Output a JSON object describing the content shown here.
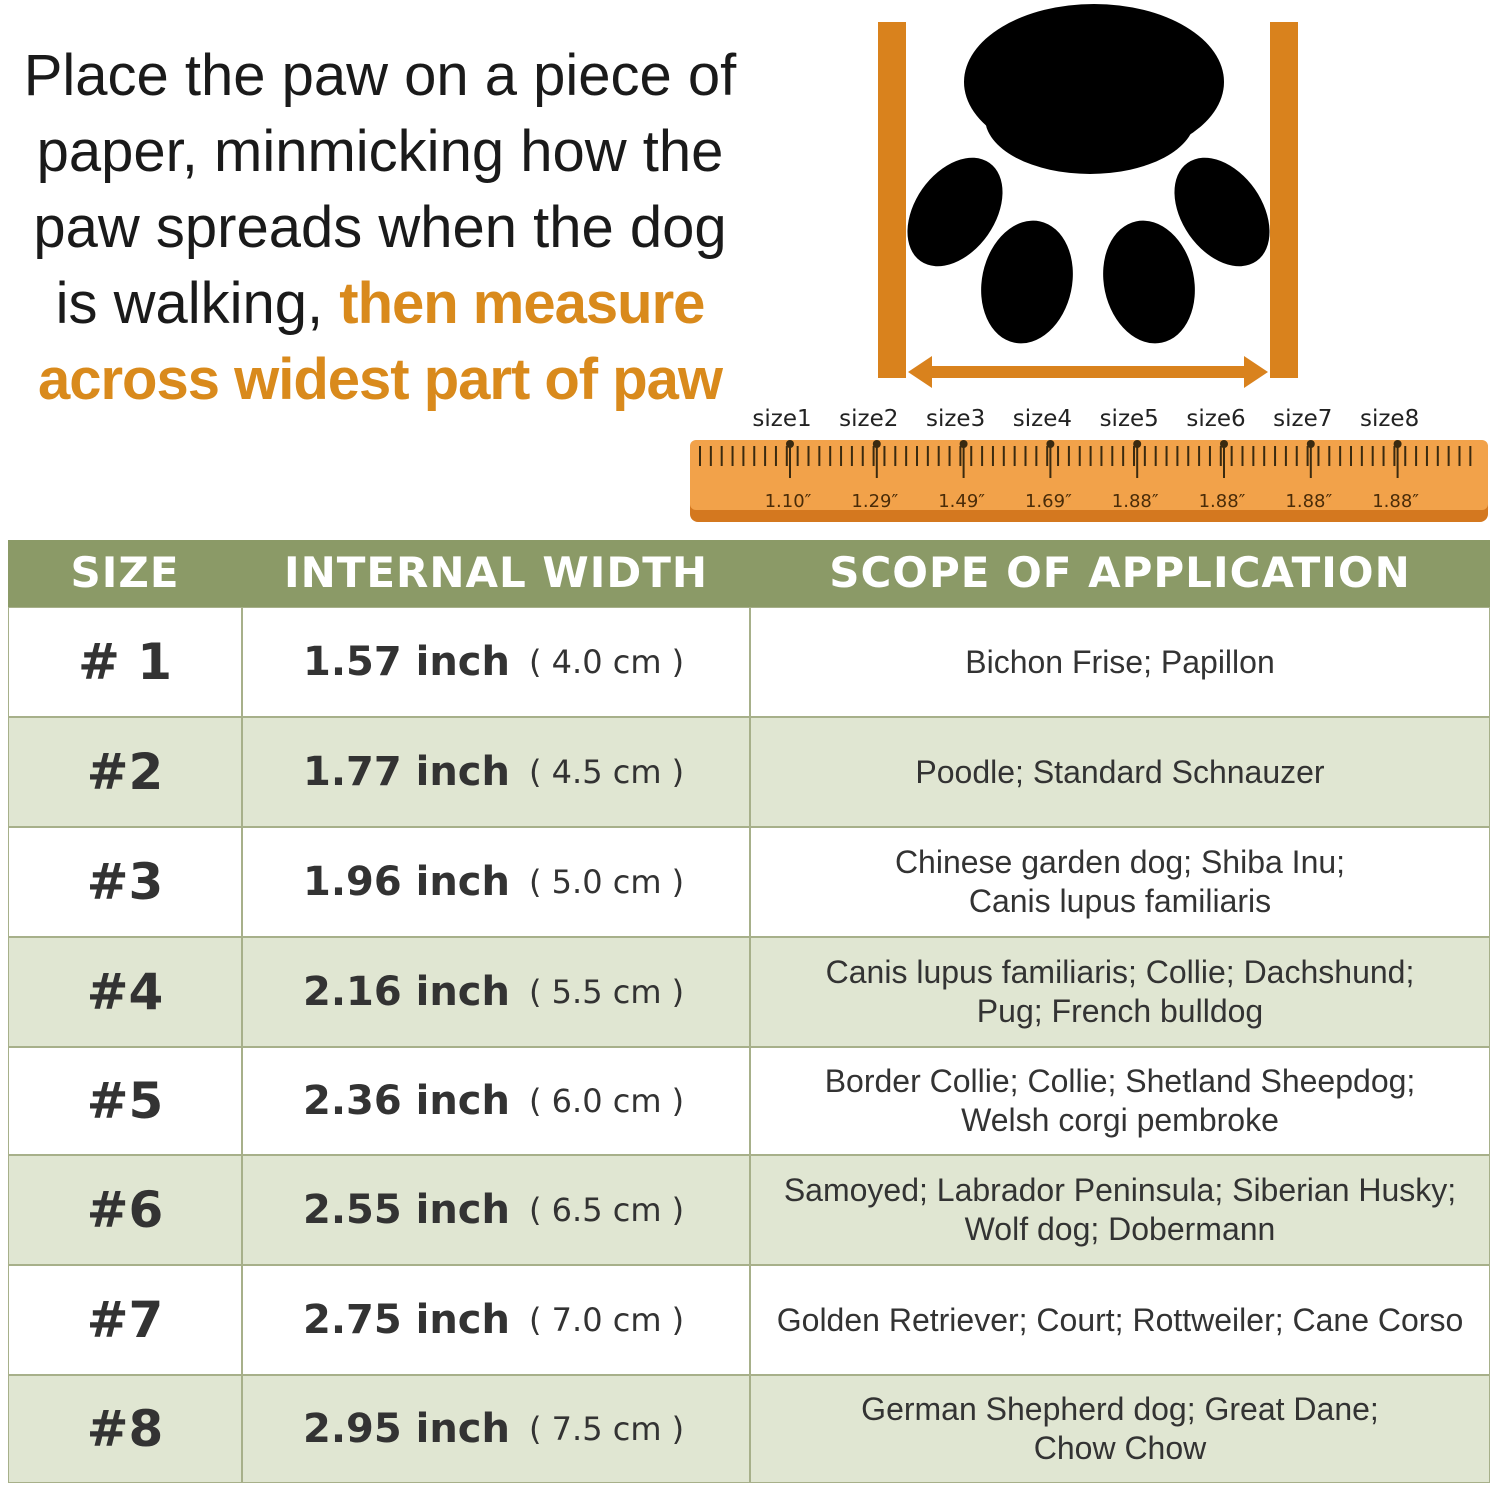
{
  "instruction": {
    "plain": "Place the paw on a piece of paper, minmicking how the paw spreads when the dog is walking,",
    "highlight": "then measure across widest part of paw"
  },
  "ruler": {
    "sizes": [
      "size1",
      "size2",
      "size3",
      "size4",
      "size5",
      "size6",
      "size7",
      "size8"
    ],
    "measures": [
      "1.10″",
      "1.29″",
      "1.49″",
      "1.69″",
      "1.88″",
      "1.88″",
      "1.88″",
      "1.88″"
    ]
  },
  "table": {
    "headers": [
      "SIZE",
      "INTERNAL WIDTH",
      "SCOPE OF APPLICATION"
    ],
    "rows": [
      {
        "size": "# 1",
        "inch": "1.57 inch",
        "cm": "( 4.0 cm )",
        "scope": [
          "Bichon Frise; Papillon"
        ]
      },
      {
        "size": "#2",
        "inch": "1.77 inch",
        "cm": "( 4.5 cm )",
        "scope": [
          "Poodle; Standard Schnauzer"
        ]
      },
      {
        "size": "#3",
        "inch": "1.96 inch",
        "cm": "( 5.0 cm )",
        "scope": [
          "Chinese garden dog; Shiba Inu;",
          "Canis lupus familiaris"
        ]
      },
      {
        "size": "#4",
        "inch": "2.16 inch",
        "cm": "( 5.5 cm )",
        "scope": [
          "Canis lupus familiaris; Collie; Dachshund;",
          "Pug; French bulldog"
        ]
      },
      {
        "size": "#5",
        "inch": "2.36 inch",
        "cm": "( 6.0 cm )",
        "scope": [
          "Border Collie; Collie; Shetland Sheepdog;",
          "Welsh corgi pembroke"
        ]
      },
      {
        "size": "#6",
        "inch": "2.55 inch",
        "cm": "( 6.5 cm )",
        "scope": [
          "Samoyed; Labrador Peninsula; Siberian Husky;",
          "Wolf dog; Dobermann"
        ]
      },
      {
        "size": "#7",
        "inch": "2.75 inch",
        "cm": "( 7.0 cm )",
        "scope": [
          "Golden Retriever; Court; Rottweiler; Cane Corso"
        ]
      },
      {
        "size": "#8",
        "inch": "2.95 inch",
        "cm": "( 7.5 cm )",
        "scope": [
          "German Shepherd dog; Great Dane;",
          "Chow Chow"
        ]
      }
    ]
  }
}
